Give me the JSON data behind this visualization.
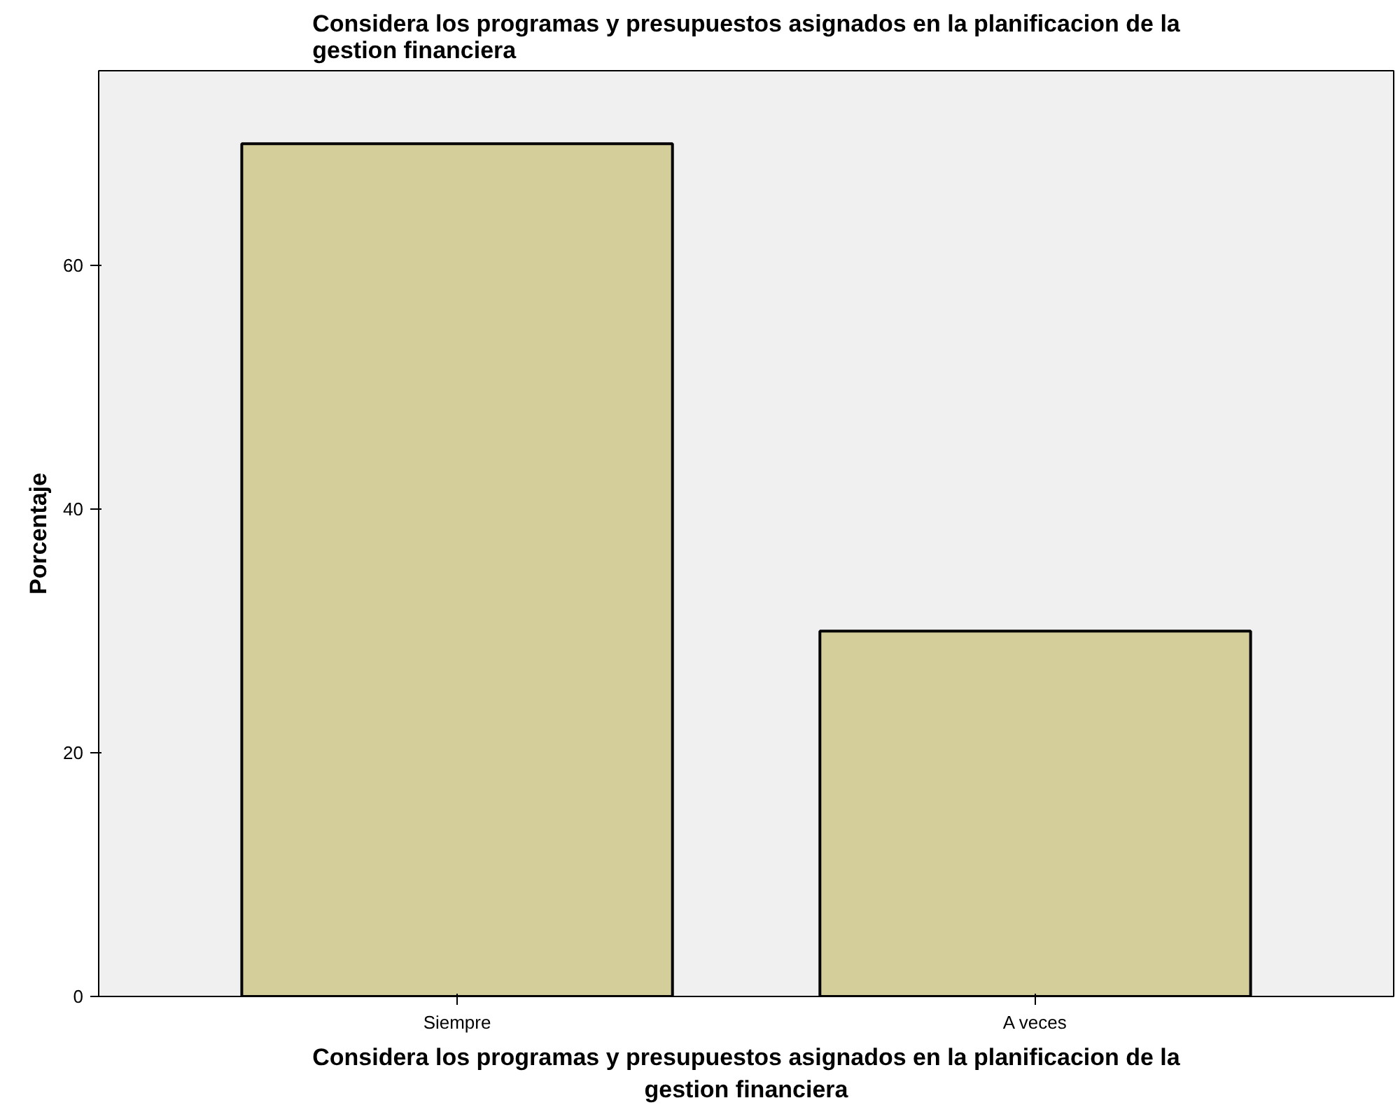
{
  "chart_data": {
    "type": "bar",
    "title": "Considera los programas y presupuestos asignados en la planificacion de la gestion financiera",
    "xlabel": "Considera los programas y presupuestos asignados en la planificacion de la gestion financiera",
    "ylabel": "Porcentaje",
    "categories": [
      "Siempre",
      "A veces"
    ],
    "values": [
      70,
      30
    ],
    "color": "#d3ce9a",
    "ylim": [
      0,
      76
    ],
    "yticks": [
      0,
      20,
      40,
      60
    ],
    "grid": false
  }
}
